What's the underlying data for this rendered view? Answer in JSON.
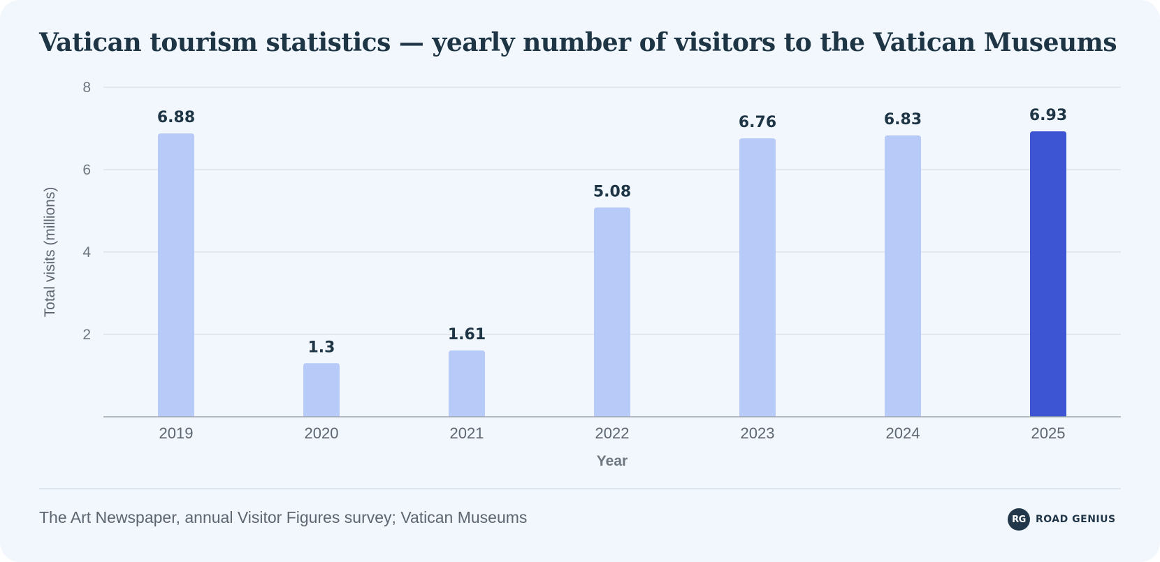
{
  "title": "Vatican tourism statistics — yearly number of visitors to the Vatican Museums",
  "source": "The Art Newspaper, annual Visitor Figures survey; Vatican Museums",
  "brand": {
    "logo_text": "RG",
    "name": "ROAD GENIUS"
  },
  "colors": {
    "background": "#f2f7fd",
    "bar": "#b8cbf8",
    "bar_highlight": "#3d55d2",
    "title": "#1e3545",
    "gridline": "#dde3ea"
  },
  "chart_data": {
    "type": "bar",
    "xlabel": "Year",
    "ylabel": "Total visits (millions)",
    "ylim": [
      0,
      8
    ],
    "yticks": [
      2,
      4,
      6,
      8
    ],
    "grid": true,
    "categories": [
      "2019",
      "2020",
      "2021",
      "2022",
      "2023",
      "2024",
      "2025"
    ],
    "values": [
      6.88,
      1.3,
      1.61,
      5.08,
      6.76,
      6.83,
      6.93
    ],
    "value_labels": [
      "6.88",
      "1.3",
      "1.61",
      "5.08",
      "6.76",
      "6.83",
      "6.93"
    ],
    "highlight_category": "2025"
  }
}
